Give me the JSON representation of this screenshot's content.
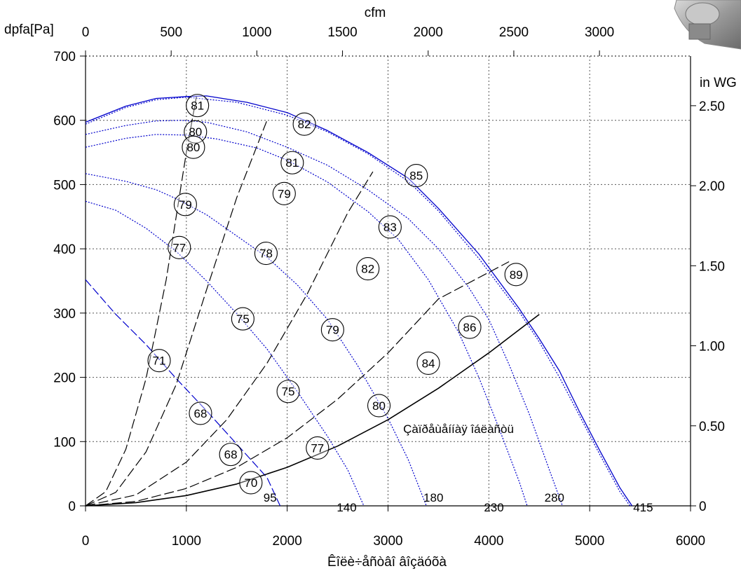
{
  "chart_data": {
    "type": "line",
    "title": "",
    "xlabel": "Êîëè÷åñòâî âîçäóõà",
    "ylabel": "dpfa[Pa]",
    "x_top_label": "cfm",
    "y_right_label": "in WG",
    "xlim": [
      0,
      6000
    ],
    "ylim": [
      0,
      700
    ],
    "grid": true,
    "x_ticks": [
      "0",
      "1000",
      "2000",
      "3000",
      "4000",
      "5000",
      "6000"
    ],
    "x_tick_values": [
      0,
      1000,
      2000,
      3000,
      4000,
      5000,
      6000
    ],
    "y_ticks": [
      "0",
      "100",
      "200",
      "300",
      "400",
      "500",
      "600",
      "700"
    ],
    "y_tick_values": [
      0,
      100,
      200,
      300,
      400,
      500,
      600,
      700
    ],
    "top_ticks": [
      "0",
      "500",
      "1000",
      "1500",
      "2000",
      "2500",
      "3000"
    ],
    "top_tick_values": [
      0,
      500,
      1000,
      1500,
      2000,
      2500,
      3000
    ],
    "right_ticks": [
      "0",
      "0.50",
      "1.00",
      "1.50",
      "2.00",
      "2.50"
    ],
    "right_tick_values": [
      0,
      0.5,
      1.0,
      1.5,
      2.0,
      2.5
    ],
    "colors": {
      "fan_curve": "#0000cc",
      "system_curve": "#000000",
      "dash": "#000000"
    },
    "series": [
      {
        "kind": "fan-curve",
        "style": "blue-solid",
        "points": [
          [
            0,
            597
          ],
          [
            400,
            622
          ],
          [
            700,
            634
          ],
          [
            1000,
            637
          ],
          [
            1200,
            638
          ],
          [
            1600,
            628
          ],
          [
            2000,
            612
          ],
          [
            2400,
            584
          ],
          [
            2800,
            550
          ],
          [
            3200,
            510
          ],
          [
            3500,
            463
          ],
          [
            3900,
            392
          ],
          [
            4300,
            307
          ],
          [
            4500,
            260
          ],
          [
            4700,
            210
          ],
          [
            4900,
            146
          ],
          [
            5100,
            86
          ],
          [
            5300,
            28
          ],
          [
            5420,
            0
          ]
        ]
      },
      {
        "kind": "fan-curve",
        "style": "blue-dotted",
        "points": [
          [
            0,
            594
          ],
          [
            400,
            620
          ],
          [
            700,
            632
          ],
          [
            1000,
            636
          ],
          [
            1500,
            628
          ],
          [
            2000,
            608
          ],
          [
            2400,
            582
          ],
          [
            2800,
            548
          ],
          [
            3200,
            505
          ],
          [
            3500,
            459
          ],
          [
            3900,
            385
          ],
          [
            4300,
            302
          ],
          [
            4500,
            255
          ],
          [
            4700,
            200
          ],
          [
            4900,
            140
          ],
          [
            5100,
            80
          ],
          [
            5300,
            22
          ],
          [
            5400,
            0
          ]
        ]
      },
      {
        "kind": "fan-curve",
        "style": "blue-dotted",
        "points": [
          [
            0,
            578
          ],
          [
            400,
            592
          ],
          [
            700,
            599
          ],
          [
            950,
            600
          ],
          [
            1200,
            597
          ],
          [
            1600,
            582
          ],
          [
            2000,
            558
          ],
          [
            2400,
            530
          ],
          [
            2800,
            492
          ],
          [
            3200,
            447
          ],
          [
            3500,
            400
          ],
          [
            3800,
            340
          ],
          [
            4000,
            290
          ],
          [
            4200,
            220
          ],
          [
            4400,
            143
          ],
          [
            4600,
            56
          ],
          [
            4730,
            0
          ]
        ]
      },
      {
        "kind": "fan-curve",
        "style": "blue-dotted",
        "points": [
          [
            0,
            558
          ],
          [
            400,
            572
          ],
          [
            700,
            578
          ],
          [
            1000,
            577
          ],
          [
            1300,
            571
          ],
          [
            1700,
            557
          ],
          [
            2000,
            538
          ],
          [
            2400,
            504
          ],
          [
            2800,
            458
          ],
          [
            3100,
            415
          ],
          [
            3400,
            352
          ],
          [
            3700,
            270
          ],
          [
            3900,
            200
          ],
          [
            4100,
            121
          ],
          [
            4300,
            38
          ],
          [
            4380,
            0
          ]
        ]
      },
      {
        "kind": "fan-curve",
        "style": "blue-dotted",
        "points": [
          [
            0,
            517
          ],
          [
            400,
            505
          ],
          [
            700,
            492
          ],
          [
            900,
            478
          ],
          [
            1200,
            453
          ],
          [
            1500,
            420
          ],
          [
            1800,
            387
          ],
          [
            2100,
            344
          ],
          [
            2400,
            290
          ],
          [
            2700,
            218
          ],
          [
            3000,
            136
          ],
          [
            3200,
            72
          ],
          [
            3380,
            0
          ]
        ]
      },
      {
        "kind": "fan-curve",
        "style": "blue-dotted",
        "points": [
          [
            0,
            474
          ],
          [
            300,
            460
          ],
          [
            600,
            432
          ],
          [
            900,
            396
          ],
          [
            1200,
            350
          ],
          [
            1500,
            299
          ],
          [
            1800,
            244
          ],
          [
            2100,
            178
          ],
          [
            2400,
            108
          ],
          [
            2600,
            56
          ],
          [
            2760,
            0
          ]
        ]
      },
      {
        "kind": "fan-curve",
        "style": "blue-dashed",
        "points": [
          [
            0,
            352
          ],
          [
            300,
            298
          ],
          [
            600,
            251
          ],
          [
            900,
            198
          ],
          [
            1200,
            148
          ],
          [
            1500,
            96
          ],
          [
            1800,
            44
          ],
          [
            1930,
            0
          ]
        ]
      },
      {
        "kind": "system-curve",
        "style": "black-solid",
        "points": [
          [
            0,
            0
          ],
          [
            500,
            5
          ],
          [
            1000,
            16
          ],
          [
            1500,
            34
          ],
          [
            2000,
            60
          ],
          [
            2500,
            93
          ],
          [
            3000,
            134
          ],
          [
            3500,
            183
          ],
          [
            4000,
            238
          ],
          [
            4500,
            298
          ]
        ]
      },
      {
        "kind": "system-curve",
        "style": "black-dashed",
        "points": [
          [
            0,
            0
          ],
          [
            500,
            7
          ],
          [
            1000,
            27
          ],
          [
            1500,
            60
          ],
          [
            2000,
            106
          ],
          [
            2500,
            166
          ],
          [
            3000,
            238
          ],
          [
            3500,
            322
          ],
          [
            4200,
            380
          ]
        ]
      },
      {
        "kind": "system-curve",
        "style": "black-dashed",
        "points": [
          [
            0,
            0
          ],
          [
            500,
            17
          ],
          [
            1000,
            68
          ],
          [
            1400,
            134
          ],
          [
            1800,
            222
          ],
          [
            2200,
            330
          ],
          [
            2600,
            456
          ],
          [
            2850,
            520
          ]
        ]
      },
      {
        "kind": "system-curve",
        "style": "black-dashed",
        "points": [
          [
            0,
            0
          ],
          [
            300,
            21
          ],
          [
            600,
            84
          ],
          [
            900,
            189
          ],
          [
            1200,
            336
          ],
          [
            1500,
            480
          ],
          [
            1800,
            600
          ]
        ]
      },
      {
        "kind": "system-curve",
        "style": "black-dashed",
        "points": [
          [
            0,
            0
          ],
          [
            200,
            22
          ],
          [
            400,
            88
          ],
          [
            600,
            198
          ],
          [
            800,
            352
          ],
          [
            1000,
            550
          ],
          [
            1100,
            637
          ]
        ]
      }
    ],
    "efficiency_markers": [
      {
        "label": "81",
        "x": 1110,
        "y": 623
      },
      {
        "label": "82",
        "x": 2170,
        "y": 594
      },
      {
        "label": "80",
        "x": 1090,
        "y": 582
      },
      {
        "label": "80",
        "x": 1070,
        "y": 558
      },
      {
        "label": "81",
        "x": 2050,
        "y": 534
      },
      {
        "label": "85",
        "x": 3280,
        "y": 514
      },
      {
        "label": "79",
        "x": 990,
        "y": 469
      },
      {
        "label": "79",
        "x": 1970,
        "y": 486
      },
      {
        "label": "83",
        "x": 3020,
        "y": 434
      },
      {
        "label": "77",
        "x": 930,
        "y": 402
      },
      {
        "label": "78",
        "x": 1790,
        "y": 393
      },
      {
        "label": "82",
        "x": 2800,
        "y": 369
      },
      {
        "label": "89",
        "x": 4270,
        "y": 360
      },
      {
        "label": "75",
        "x": 1560,
        "y": 291
      },
      {
        "label": "79",
        "x": 2450,
        "y": 274
      },
      {
        "label": "86",
        "x": 3810,
        "y": 278
      },
      {
        "label": "71",
        "x": 730,
        "y": 226
      },
      {
        "label": "84",
        "x": 3400,
        "y": 222
      },
      {
        "label": "75",
        "x": 2010,
        "y": 178
      },
      {
        "label": "68",
        "x": 1140,
        "y": 144
      },
      {
        "label": "80",
        "x": 2910,
        "y": 156
      },
      {
        "label": "68",
        "x": 1440,
        "y": 80
      },
      {
        "label": "77",
        "x": 2300,
        "y": 90
      },
      {
        "label": "70",
        "x": 1640,
        "y": 36
      }
    ],
    "curve_labels": [
      {
        "label": "95",
        "x": 1830,
        "y": 0
      },
      {
        "label": "140",
        "x": 2590,
        "y": -15
      },
      {
        "label": "180",
        "x": 3450,
        "y": 0
      },
      {
        "label": "230",
        "x": 4050,
        "y": -15
      },
      {
        "label": "280",
        "x": 4650,
        "y": 0
      },
      {
        "label": "415",
        "x": 5530,
        "y": -15
      }
    ],
    "annotations": [
      {
        "text": "Çàïðåùåííàÿ îáëàñòü",
        "x": 3150,
        "y": 120
      }
    ]
  }
}
